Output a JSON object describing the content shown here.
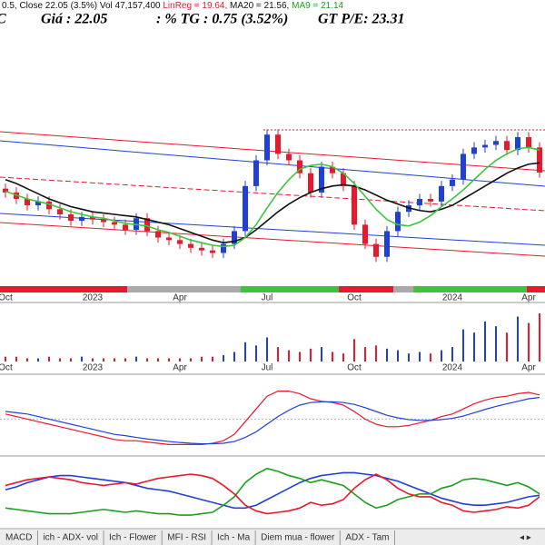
{
  "header": {
    "info": [
      "0.5, Close 22.05 (3.5%) Vol 47,157,400 ",
      "LinReg = 19.64,",
      " MA20 = 21.56,",
      " MA9 = 21.14"
    ],
    "symbol": "C",
    "price": "Giá : 22.05",
    "change": ": % TG : 0.75 (3.52%)",
    "pe": "GT P/E: 23.31"
  },
  "chart_data": {
    "type": "candlestick",
    "categories": [
      "Oct",
      null,
      null,
      null,
      null,
      null,
      null,
      null,
      "2023",
      null,
      null,
      null,
      null,
      null,
      null,
      null,
      "Apr",
      null,
      null,
      null,
      null,
      null,
      null,
      null,
      "Jul",
      null,
      null,
      null,
      null,
      null,
      null,
      null,
      "Oct",
      null,
      null,
      null,
      null,
      null,
      null,
      null,
      null,
      "2024",
      null,
      null,
      null,
      null,
      null,
      null,
      "Apr",
      null
    ],
    "open": [
      20.8,
      20.5,
      20.0,
      19.5,
      19.8,
      19.2,
      18.8,
      18.3,
      18.6,
      18.4,
      18.2,
      18.0,
      17.6,
      18.5,
      17.5,
      17.0,
      16.8,
      16.5,
      16.2,
      16.0,
      15.8,
      16.5,
      17.5,
      21.0,
      23.0,
      25.0,
      23.5,
      23.0,
      22.0,
      20.5,
      22.5,
      22.0,
      21.0,
      18.0,
      16.5,
      15.5,
      17.5,
      19.0,
      19.5,
      20.0,
      19.8,
      21.0,
      21.5,
      23.5,
      24.0,
      24.2,
      24.5,
      23.8,
      24.8,
      24.0
    ],
    "high": [
      21.2,
      20.9,
      20.4,
      20.2,
      20.2,
      19.6,
      19.2,
      19.0,
      19.0,
      18.8,
      18.6,
      18.4,
      18.9,
      18.9,
      17.9,
      17.4,
      17.2,
      16.9,
      16.6,
      16.4,
      16.9,
      17.9,
      21.4,
      23.4,
      25.4,
      25.4,
      23.9,
      23.4,
      22.4,
      22.9,
      22.9,
      22.4,
      21.4,
      18.4,
      16.9,
      17.9,
      19.4,
      19.9,
      20.4,
      20.4,
      21.4,
      21.9,
      23.9,
      24.4,
      24.6,
      24.9,
      24.9,
      25.2,
      25.2,
      24.4
    ],
    "low": [
      20.1,
      19.6,
      19.1,
      19.1,
      18.8,
      18.4,
      17.9,
      17.9,
      18.0,
      17.8,
      17.6,
      17.2,
      17.2,
      17.1,
      16.6,
      16.4,
      16.1,
      15.8,
      15.6,
      15.4,
      15.4,
      16.1,
      17.1,
      20.6,
      22.6,
      23.1,
      22.6,
      21.6,
      20.1,
      20.1,
      21.6,
      20.6,
      17.6,
      16.1,
      15.1,
      15.1,
      17.1,
      18.6,
      19.1,
      19.4,
      19.4,
      20.6,
      21.1,
      23.1,
      23.6,
      23.8,
      23.4,
      23.4,
      23.6,
      21.65
    ],
    "close": [
      20.5,
      20.0,
      19.5,
      19.8,
      19.2,
      18.8,
      18.3,
      18.6,
      18.4,
      18.2,
      18.0,
      17.6,
      18.5,
      17.5,
      17.0,
      16.8,
      16.5,
      16.2,
      16.0,
      15.8,
      16.5,
      17.5,
      21.0,
      23.0,
      25.0,
      23.5,
      23.0,
      22.0,
      20.5,
      22.5,
      22.0,
      21.0,
      18.0,
      16.5,
      15.5,
      17.5,
      19.0,
      19.5,
      20.0,
      19.8,
      21.0,
      21.5,
      23.5,
      24.0,
      24.2,
      24.5,
      23.8,
      24.8,
      24.0,
      22.05
    ],
    "ylim": [
      14,
      26
    ],
    "series": [
      {
        "color": "#111111",
        "values": [
          21.5,
          21.2,
          20.8,
          20.4,
          20.0,
          19.7,
          19.4,
          19.2,
          19.0,
          18.9,
          18.8,
          18.7,
          18.6,
          18.4,
          18.2,
          18.0,
          17.7,
          17.4,
          17.1,
          16.8,
          16.6,
          16.7,
          17.0,
          17.6,
          18.3,
          19.0,
          19.6,
          20.1,
          20.5,
          20.8,
          21.0,
          21.1,
          21.0,
          20.7,
          20.3,
          19.9,
          19.6,
          19.3,
          19.1,
          19.0,
          19.2,
          19.5,
          20.0,
          20.5,
          21.0,
          21.5,
          22.0,
          22.4,
          22.7,
          22.8
        ]
      },
      {
        "color": "#3cc43c",
        "values": [
          20.6,
          20.3,
          20.0,
          19.8,
          19.6,
          19.3,
          19.0,
          18.8,
          18.6,
          18.5,
          18.3,
          18.1,
          18.0,
          17.9,
          17.6,
          17.4,
          17.1,
          16.8,
          16.6,
          16.4,
          16.3,
          16.4,
          17.0,
          18.0,
          19.3,
          20.5,
          21.5,
          22.3,
          22.6,
          22.7,
          22.5,
          22.0,
          21.2,
          20.2,
          19.2,
          18.4,
          18.0,
          17.9,
          18.2,
          18.7,
          19.4,
          20.0,
          20.7,
          21.5,
          22.3,
          23.0,
          23.5,
          23.9,
          24.0,
          23.8
        ]
      }
    ],
    "up_color": "#1f3fd6",
    "down_color": "#e8192c",
    "volume": {
      "ylim": [
        0,
        30
      ],
      "values": [
        3,
        3,
        2,
        2,
        3,
        2,
        2,
        3,
        2,
        2,
        2,
        2,
        3,
        2,
        2,
        2,
        2,
        2,
        3,
        3,
        4,
        6,
        12,
        10,
        15,
        9,
        7,
        6,
        8,
        9,
        6,
        5,
        14,
        9,
        10,
        8,
        7,
        5,
        6,
        5,
        7,
        9,
        20,
        18,
        25,
        22,
        18,
        28,
        24,
        30
      ]
    },
    "macd": {
      "ylim": [
        -1.2,
        1.3
      ],
      "series": [
        {
          "color": "#e8192c",
          "values": [
            0.2,
            0.1,
            0,
            -0.1,
            -0.2,
            -0.3,
            -0.4,
            -0.5,
            -0.6,
            -0.7,
            -0.8,
            -0.85,
            -0.85,
            -0.9,
            -0.95,
            -1.0,
            -1.0,
            -1.0,
            -1.0,
            -0.95,
            -0.85,
            -0.6,
            -0.1,
            0.4,
            0.9,
            1.1,
            1.1,
            1.0,
            0.8,
            0.7,
            0.65,
            0.55,
            0.3,
            0,
            -0.2,
            -0.3,
            -0.3,
            -0.25,
            -0.15,
            -0.05,
            0.1,
            0.2,
            0.4,
            0.6,
            0.75,
            0.85,
            0.9,
            1.0,
            1.05,
            0.95
          ]
        },
        {
          "color": "#1f3fd6",
          "values": [
            0.3,
            0.25,
            0.2,
            0.1,
            0,
            -0.1,
            -0.2,
            -0.3,
            -0.4,
            -0.5,
            -0.6,
            -0.65,
            -0.72,
            -0.78,
            -0.83,
            -0.88,
            -0.92,
            -0.95,
            -0.97,
            -0.97,
            -0.95,
            -0.88,
            -0.72,
            -0.5,
            -0.2,
            0.1,
            0.35,
            0.55,
            0.65,
            0.68,
            0.68,
            0.65,
            0.58,
            0.45,
            0.3,
            0.15,
            0.05,
            -0.02,
            -0.05,
            -0.05,
            -0.02,
            0.03,
            0.12,
            0.25,
            0.38,
            0.5,
            0.6,
            0.7,
            0.8,
            0.85
          ]
        }
      ]
    },
    "adx": {
      "ylim": [
        0,
        45
      ],
      "series": [
        {
          "color": "#1f3fd6",
          "values": [
            25,
            27,
            30,
            32,
            34,
            35,
            35,
            34,
            33,
            32,
            31,
            30,
            28,
            26,
            25,
            24,
            22,
            20,
            18,
            16,
            14,
            12,
            12,
            14,
            18,
            22,
            26,
            30,
            33,
            35,
            36,
            37,
            37,
            36,
            35,
            33,
            31,
            28,
            25,
            22,
            19,
            17,
            15,
            14,
            14,
            15,
            16,
            18,
            20,
            21
          ]
        },
        {
          "color": "#1e9e1e",
          "values": [
            12,
            11,
            10,
            9,
            8,
            8,
            8,
            9,
            10,
            11,
            10,
            9,
            10,
            9,
            8,
            8,
            7,
            7,
            8,
            9,
            14,
            20,
            30,
            36,
            40,
            38,
            35,
            33,
            30,
            32,
            30,
            28,
            22,
            16,
            12,
            14,
            18,
            20,
            22,
            22,
            26,
            28,
            32,
            33,
            32,
            30,
            28,
            30,
            27,
            22
          ]
        },
        {
          "color": "#e8192c",
          "values": [
            28,
            30,
            32,
            33,
            34,
            33,
            32,
            30,
            29,
            28,
            29,
            30,
            29,
            31,
            33,
            34,
            35,
            36,
            35,
            33,
            28,
            22,
            14,
            10,
            8,
            9,
            10,
            12,
            16,
            14,
            15,
            18,
            26,
            32,
            36,
            32,
            26,
            22,
            20,
            20,
            16,
            14,
            10,
            9,
            10,
            11,
            13,
            12,
            14,
            20
          ]
        }
      ]
    }
  },
  "tabs": [
    "MACD",
    "ich - ADX- vol",
    "Ich - Flower",
    "MFI - RSI",
    "Ich - Ma",
    "Diem mua - flower",
    "ADX - Tam"
  ]
}
